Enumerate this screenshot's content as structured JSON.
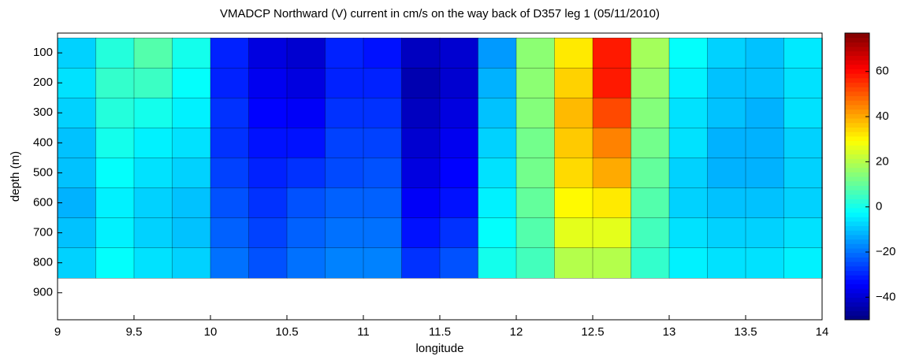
{
  "chart_data": {
    "type": "heatmap",
    "title": "VMADCP Northward (V) current in cm/s on the way back of D357 leg 1 (05/11/2010)",
    "xlabel": "longitude",
    "ylabel": "depth (m)",
    "x": [
      9.125,
      9.375,
      9.625,
      9.875,
      10.125,
      10.375,
      10.625,
      10.875,
      11.125,
      11.375,
      11.625,
      11.875,
      12.125,
      12.375,
      12.625,
      12.875,
      13.125,
      13.375,
      13.625,
      13.875
    ],
    "y": [
      100,
      200,
      300,
      400,
      500,
      600,
      700,
      800
    ],
    "z": [
      [
        -8,
        2,
        8,
        0,
        -30,
        -38,
        -40,
        -30,
        -32,
        -42,
        -40,
        -15,
        15,
        32,
        58,
        18,
        -2,
        -8,
        -10,
        -5
      ],
      [
        -6,
        4,
        5,
        -2,
        -30,
        -36,
        -38,
        -30,
        -30,
        -44,
        -40,
        -12,
        15,
        35,
        58,
        16,
        -4,
        -10,
        -10,
        -6
      ],
      [
        -8,
        2,
        0,
        -4,
        -28,
        -34,
        -35,
        -28,
        -28,
        -42,
        -38,
        -10,
        14,
        38,
        52,
        14,
        -6,
        -10,
        -12,
        -6
      ],
      [
        -10,
        0,
        -4,
        -6,
        -28,
        -32,
        -32,
        -26,
        -26,
        -40,
        -36,
        -8,
        12,
        36,
        45,
        12,
        -6,
        -12,
        -12,
        -8
      ],
      [
        -10,
        -2,
        -6,
        -8,
        -26,
        -30,
        -28,
        -25,
        -24,
        -38,
        -34,
        -6,
        12,
        34,
        40,
        10,
        -8,
        -12,
        -12,
        -8
      ],
      [
        -12,
        -4,
        -8,
        -10,
        -24,
        -28,
        -24,
        -22,
        -22,
        -35,
        -32,
        -4,
        10,
        30,
        32,
        8,
        -8,
        -10,
        -10,
        -8
      ],
      [
        -10,
        -4,
        -8,
        -10,
        -22,
        -26,
        -22,
        -20,
        -20,
        -32,
        -28,
        -2,
        8,
        26,
        26,
        6,
        -6,
        -8,
        -8,
        -6
      ],
      [
        -8,
        -2,
        -6,
        -8,
        -20,
        -24,
        -20,
        -18,
        -18,
        -28,
        -24,
        0,
        6,
        20,
        20,
        4,
        -4,
        -6,
        -6,
        -4
      ]
    ],
    "xlim": [
      9,
      14
    ],
    "xticks": [
      9,
      9.5,
      10,
      10.5,
      11,
      11.5,
      12,
      12.5,
      13,
      13.5,
      14
    ],
    "ylim": [
      34,
      990
    ],
    "y_reversed": true,
    "yticks": [
      100,
      200,
      300,
      400,
      500,
      600,
      700,
      800,
      900
    ],
    "clim": [
      -50,
      77
    ],
    "colormap": "jet",
    "cticks": [
      {
        "value": -40,
        "label": "−40"
      },
      {
        "value": -20,
        "label": "−20"
      },
      0,
      20,
      40,
      60
    ]
  }
}
